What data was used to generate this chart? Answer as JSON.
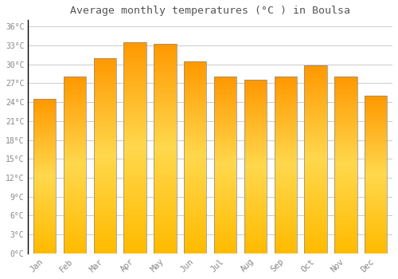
{
  "title": "Average monthly temperatures (°C ) in Boulsa",
  "months": [
    "Jan",
    "Feb",
    "Mar",
    "Apr",
    "May",
    "Jun",
    "Jul",
    "Aug",
    "Sep",
    "Oct",
    "Nov",
    "Dec"
  ],
  "values": [
    24.5,
    28.0,
    31.0,
    33.5,
    33.3,
    30.5,
    28.0,
    27.5,
    28.0,
    29.8,
    28.0,
    25.0
  ],
  "bar_color": "#FFA500",
  "bar_edge_color": "#888888",
  "background_color": "#FFFFFF",
  "grid_color": "#CCCCCC",
  "title_color": "#555555",
  "tick_color": "#888888",
  "ylim": [
    0,
    37
  ],
  "yticks": [
    0,
    3,
    6,
    9,
    12,
    15,
    18,
    21,
    24,
    27,
    30,
    33,
    36
  ],
  "bar_width": 0.75,
  "figsize": [
    5.0,
    3.5
  ],
  "dpi": 100
}
